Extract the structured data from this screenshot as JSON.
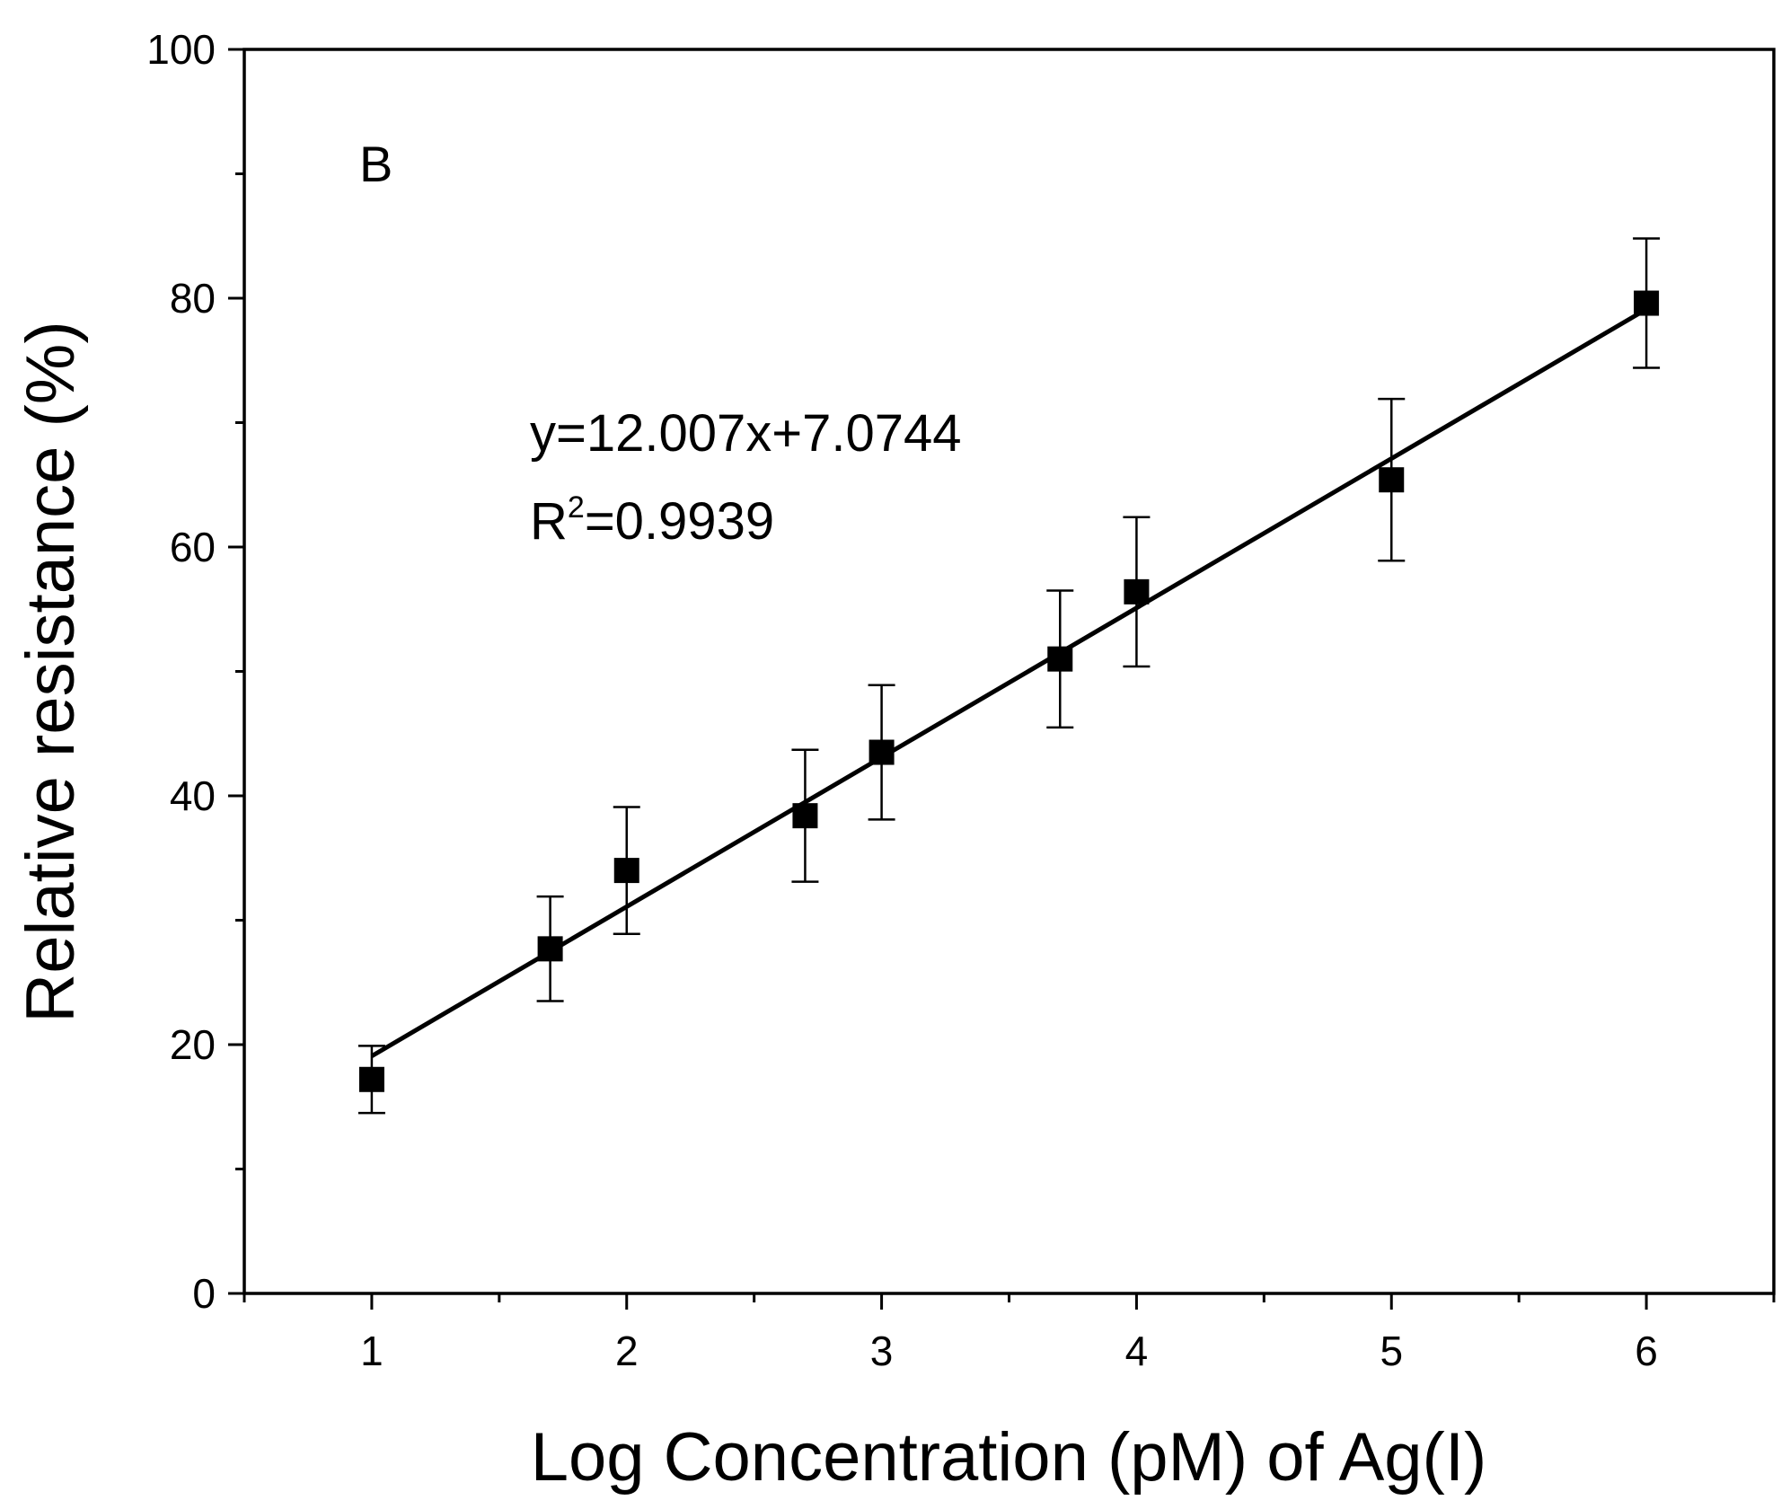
{
  "chart_data": {
    "type": "scatter",
    "panel_label": "B",
    "xlabel": "Log Concentration (pM) of Ag(I)",
    "ylabel": "Relative resistance (%)",
    "xlim": [
      0.5,
      6.5
    ],
    "ylim": [
      0,
      100
    ],
    "x_ticks": [
      1,
      2,
      3,
      4,
      5,
      6
    ],
    "x_tick_labels": [
      "1",
      "2",
      "3",
      "4",
      "5",
      "6"
    ],
    "x_minor_ticks": [
      0.5,
      1.5,
      2.5,
      3.5,
      4.5,
      5.5,
      6.5
    ],
    "y_ticks": [
      0,
      20,
      40,
      60,
      80,
      100
    ],
    "y_tick_labels": [
      "0",
      "20",
      "40",
      "60",
      "80",
      "100"
    ],
    "y_minor_ticks": [
      10,
      30,
      50,
      70,
      90
    ],
    "series": [
      {
        "name": "Relative resistance",
        "marker": "square",
        "x": [
          1,
          1.7,
          2,
          2.7,
          3,
          3.7,
          4,
          5,
          6
        ],
        "y": [
          17.2,
          27.7,
          34.0,
          38.4,
          43.5,
          51.0,
          56.4,
          65.4,
          79.6
        ],
        "yerr": [
          2.7,
          4.2,
          5.1,
          5.3,
          5.4,
          5.5,
          6.0,
          6.5,
          5.2
        ]
      }
    ],
    "fit": {
      "slope": 12.007,
      "intercept": 7.0744,
      "x_range": [
        1,
        6
      ],
      "equation": "y=12.007x+7.0744",
      "r2_prefix": "R",
      "r2_sup": "2",
      "r2_value": "=0.9939"
    }
  }
}
